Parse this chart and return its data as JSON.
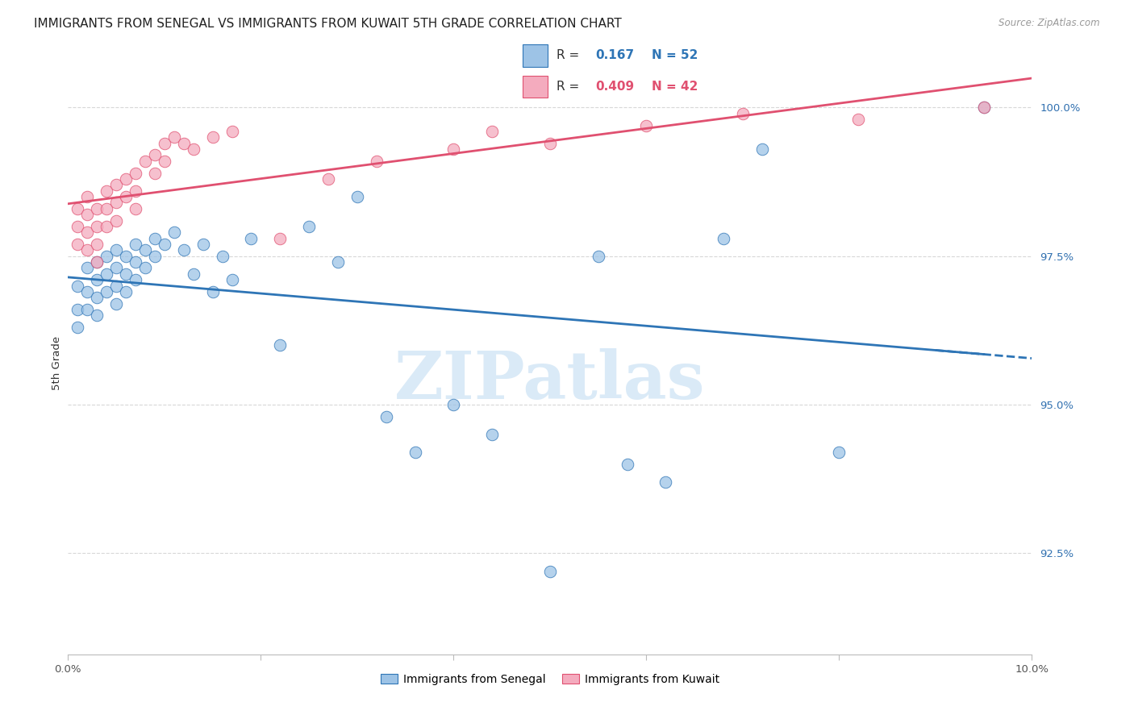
{
  "title": "IMMIGRANTS FROM SENEGAL VS IMMIGRANTS FROM KUWAIT 5TH GRADE CORRELATION CHART",
  "source": "Source: ZipAtlas.com",
  "ylabel": "5th Grade",
  "xlim": [
    0.0,
    0.1
  ],
  "ylim": [
    0.908,
    1.006
  ],
  "xtick_positions": [
    0.0,
    0.02,
    0.04,
    0.06,
    0.08,
    0.1
  ],
  "xticklabels": [
    "0.0%",
    "",
    "",
    "",
    "",
    "10.0%"
  ],
  "ytick_positions": [
    0.925,
    0.95,
    0.975,
    1.0
  ],
  "yticklabels": [
    "92.5%",
    "95.0%",
    "97.5%",
    "100.0%"
  ],
  "color_senegal": "#9DC3E6",
  "color_kuwait": "#F4ABBE",
  "line_senegal": "#2E75B6",
  "line_kuwait": "#E05070",
  "senegal_x": [
    0.001,
    0.001,
    0.001,
    0.002,
    0.002,
    0.002,
    0.003,
    0.003,
    0.003,
    0.003,
    0.004,
    0.004,
    0.004,
    0.005,
    0.005,
    0.005,
    0.005,
    0.006,
    0.006,
    0.006,
    0.007,
    0.007,
    0.007,
    0.008,
    0.008,
    0.009,
    0.009,
    0.01,
    0.011,
    0.012,
    0.013,
    0.014,
    0.015,
    0.016,
    0.017,
    0.019,
    0.022,
    0.025,
    0.028,
    0.03,
    0.033,
    0.036,
    0.04,
    0.044,
    0.05,
    0.055,
    0.058,
    0.062,
    0.068,
    0.072,
    0.08,
    0.095
  ],
  "senegal_y": [
    0.97,
    0.966,
    0.963,
    0.973,
    0.969,
    0.966,
    0.974,
    0.971,
    0.968,
    0.965,
    0.975,
    0.972,
    0.969,
    0.976,
    0.973,
    0.97,
    0.967,
    0.975,
    0.972,
    0.969,
    0.977,
    0.974,
    0.971,
    0.976,
    0.973,
    0.978,
    0.975,
    0.977,
    0.979,
    0.976,
    0.972,
    0.977,
    0.969,
    0.975,
    0.971,
    0.978,
    0.96,
    0.98,
    0.974,
    0.985,
    0.948,
    0.942,
    0.95,
    0.945,
    0.922,
    0.975,
    0.94,
    0.937,
    0.978,
    0.993,
    0.942,
    1.0
  ],
  "kuwait_x": [
    0.001,
    0.001,
    0.001,
    0.002,
    0.002,
    0.002,
    0.002,
    0.003,
    0.003,
    0.003,
    0.003,
    0.004,
    0.004,
    0.004,
    0.005,
    0.005,
    0.005,
    0.006,
    0.006,
    0.007,
    0.007,
    0.007,
    0.008,
    0.009,
    0.009,
    0.01,
    0.01,
    0.011,
    0.012,
    0.013,
    0.015,
    0.017,
    0.022,
    0.027,
    0.032,
    0.04,
    0.044,
    0.05,
    0.06,
    0.07,
    0.082,
    0.095
  ],
  "kuwait_y": [
    0.983,
    0.98,
    0.977,
    0.985,
    0.982,
    0.979,
    0.976,
    0.983,
    0.98,
    0.977,
    0.974,
    0.986,
    0.983,
    0.98,
    0.987,
    0.984,
    0.981,
    0.988,
    0.985,
    0.989,
    0.986,
    0.983,
    0.991,
    0.992,
    0.989,
    0.994,
    0.991,
    0.995,
    0.994,
    0.993,
    0.995,
    0.996,
    0.978,
    0.988,
    0.991,
    0.993,
    0.996,
    0.994,
    0.997,
    0.999,
    0.998,
    1.0
  ],
  "background_color": "#ffffff",
  "grid_color": "#d8d8d8",
  "watermark_text": "ZIPatlas",
  "watermark_color": "#daeaf7",
  "title_fontsize": 11,
  "tick_fontsize": 9.5,
  "ylabel_fontsize": 9.5
}
